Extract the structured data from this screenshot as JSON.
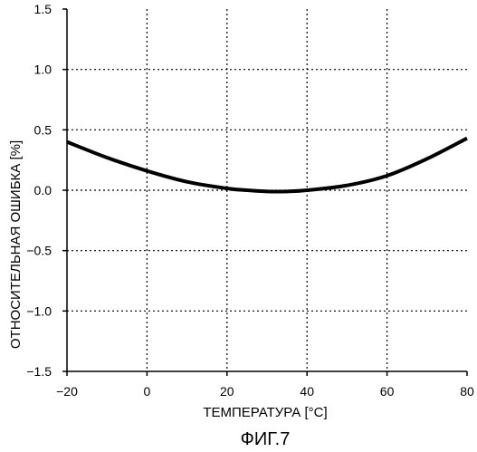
{
  "chart_data": {
    "type": "line",
    "title": "",
    "xlabel": "ТЕМПЕРАТУРА [°C]",
    "ylabel": "ОТНОСИТЕЛЬНАЯ ОШИБКА [%]",
    "xlim": [
      -20,
      80
    ],
    "ylim": [
      -1.5,
      1.5
    ],
    "x_ticks": [
      -20,
      0,
      20,
      40,
      60,
      80
    ],
    "x_tick_labels": [
      "−20",
      "0",
      "20",
      "40",
      "60",
      "80"
    ],
    "y_ticks": [
      1.5,
      1.0,
      0.5,
      0.0,
      -0.5,
      -1.0,
      -1.5
    ],
    "y_tick_labels": [
      "1.5",
      "1.0",
      "0.5",
      "0.0",
      "−0.5",
      "−1.0",
      "−1.5"
    ],
    "grid": true,
    "grid_style": "dotted",
    "series": [
      {
        "color": "#000000",
        "x": [
          -20,
          -10,
          0,
          10,
          20,
          25,
          30,
          35,
          40,
          50,
          60,
          70,
          80
        ],
        "y": [
          0.4,
          0.27,
          0.16,
          0.07,
          0.015,
          0.0,
          -0.01,
          -0.01,
          0.0,
          0.04,
          0.12,
          0.26,
          0.43
        ]
      }
    ]
  },
  "caption": "ФИГ.7"
}
